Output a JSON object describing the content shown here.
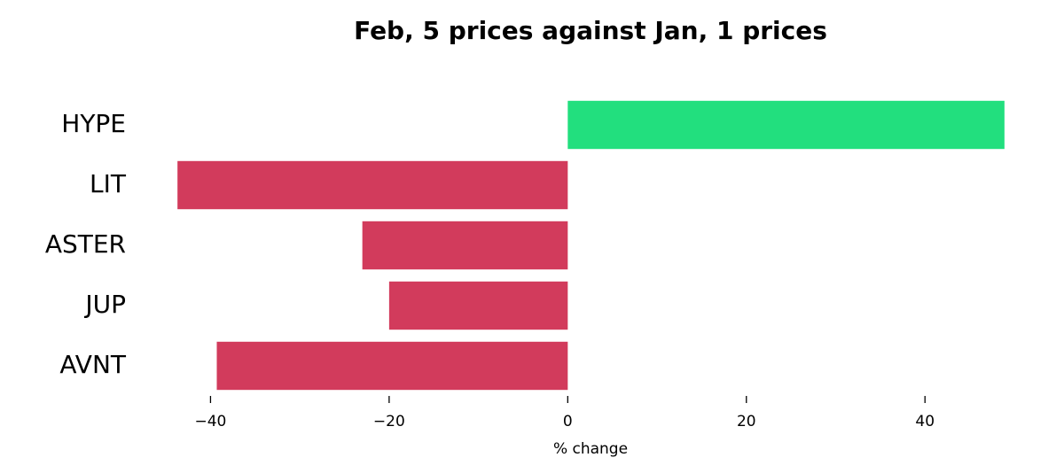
{
  "chart_data": {
    "type": "barh",
    "title": "Feb, 5 prices against Jan, 1 prices",
    "categories": [
      "HYPE",
      "LIT",
      "ASTER",
      "JUP",
      "AVNT"
    ],
    "values": [
      48.9,
      -43.7,
      -23,
      -20,
      -39.3
    ],
    "colors": [
      "#22df7e",
      "#d23b5c",
      "#d23b5c",
      "#d23b5c",
      "#d23b5c"
    ],
    "xlabel": "% change",
    "xlim": [
      -46,
      51
    ],
    "xticks": [
      {
        "value": -40,
        "label": "−40"
      },
      {
        "value": -20,
        "label": "−20"
      },
      0,
      20,
      40
    ],
    "grid": false
  }
}
